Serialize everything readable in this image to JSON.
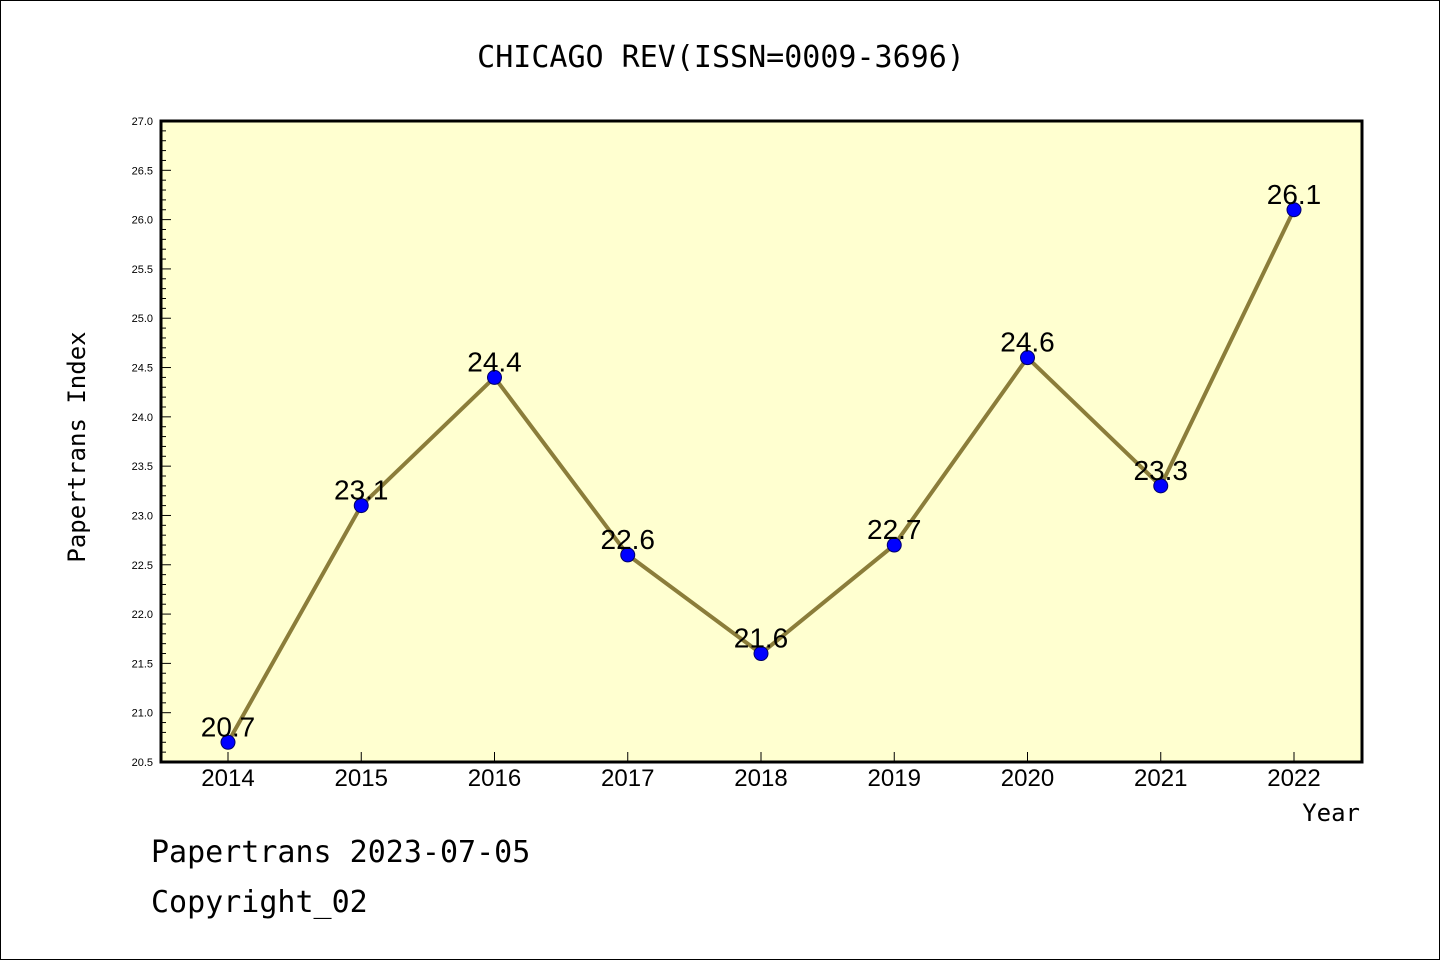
{
  "chart_data": {
    "type": "line",
    "title": "CHICAGO REV(ISSN=0009-3696)",
    "xlabel": "Year",
    "ylabel": "Papertrans Index",
    "categories": [
      "2014",
      "2015",
      "2016",
      "2017",
      "2018",
      "2019",
      "2020",
      "2021",
      "2022"
    ],
    "series": [
      {
        "values": [
          20.7,
          23.1,
          24.4,
          22.6,
          21.6,
          22.7,
          24.6,
          23.3,
          26.1
        ],
        "labels": [
          "20.7",
          "23.1",
          "24.4",
          "22.6",
          "21.6",
          "22.7",
          "24.6",
          "23.3",
          "26.1"
        ],
        "line_color": "#8b7d3a",
        "marker_color": "#0000ff"
      }
    ],
    "ylim": [
      20.5,
      27.0
    ],
    "yticks": [
      "20.5",
      "21.0",
      "21.5",
      "22.0",
      "22.5",
      "23.0",
      "23.5",
      "24.0",
      "24.5",
      "25.0",
      "25.5",
      "26.0",
      "26.5",
      "27.0"
    ],
    "plot_background": "#ffffd0",
    "grid": false,
    "legend": "none"
  },
  "footer": {
    "line1": "Papertrans 2023-07-05",
    "line2": "Copyright_02"
  }
}
